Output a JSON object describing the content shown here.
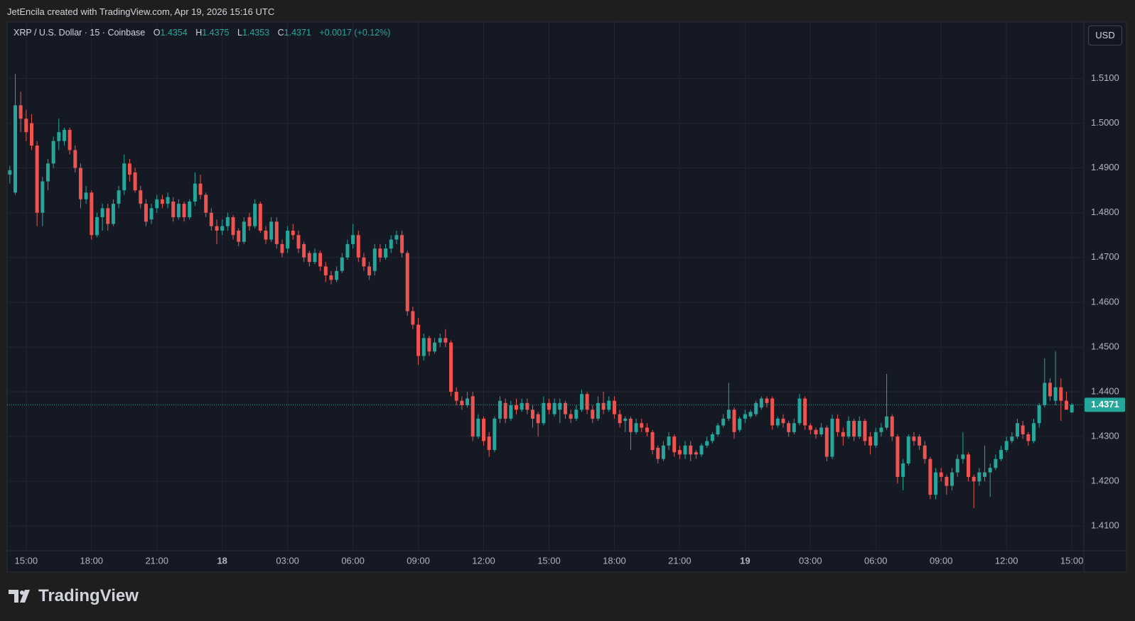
{
  "credit": "JetEncila created with TradingView.com, Apr 19, 2026 15:16 UTC",
  "brand": "TradingView",
  "chart_data": {
    "type": "candlestick",
    "title": "XRP / U.S. Dollar · 15 · Coinbase",
    "legend_keys": [
      "O",
      "H",
      "L",
      "C"
    ],
    "change": "+0.0017 (+0.12%)",
    "currency": "USD",
    "up_color": "#26a69a",
    "down_color": "#ef5350",
    "grid": true,
    "xlim": [
      -0.5,
      197.2
    ],
    "xticks": [
      {
        "value": 3,
        "label": "15:00"
      },
      {
        "value": 15,
        "label": "18:00"
      },
      {
        "value": 27,
        "label": "21:00"
      },
      {
        "value": 39,
        "label": "18"
      },
      {
        "value": 51,
        "label": "03:00"
      },
      {
        "value": 63,
        "label": "06:00"
      },
      {
        "value": 75,
        "label": "09:00"
      },
      {
        "value": 87,
        "label": "12:00"
      },
      {
        "value": 99,
        "label": "15:00"
      },
      {
        "value": 111,
        "label": "18:00"
      },
      {
        "value": 123,
        "label": "21:00"
      },
      {
        "value": 135,
        "label": "19"
      },
      {
        "value": 147,
        "label": "03:00"
      },
      {
        "value": 159,
        "label": "06:00"
      },
      {
        "value": 171,
        "label": "09:00"
      },
      {
        "value": 183,
        "label": "12:00"
      },
      {
        "value": 195,
        "label": "15:00"
      }
    ],
    "ylim": [
      1.4045,
      1.5226
    ],
    "yticks": [
      {
        "value": 1.41,
        "label": "1.4100"
      },
      {
        "value": 1.42,
        "label": "1.4200"
      },
      {
        "value": 1.43,
        "label": "1.4300"
      },
      {
        "value": 1.44,
        "label": "1.4400"
      },
      {
        "value": 1.45,
        "label": "1.4500"
      },
      {
        "value": 1.46,
        "label": "1.4600"
      },
      {
        "value": 1.47,
        "label": "1.4700"
      },
      {
        "value": 1.48,
        "label": "1.4800"
      },
      {
        "value": 1.49,
        "label": "1.4900"
      },
      {
        "value": 1.5,
        "label": "1.5000"
      },
      {
        "value": 1.51,
        "label": "1.5100"
      }
    ],
    "ohlc": [
      [
        1.4885,
        1.4905,
        1.4865,
        1.4895
      ],
      [
        1.4845,
        1.511,
        1.484,
        1.504
      ],
      [
        1.504,
        1.507,
        1.498,
        1.501
      ],
      [
        1.501,
        1.503,
        1.496,
        1.498
      ],
      [
        1.5,
        1.502,
        1.494,
        1.495
      ],
      [
        1.495,
        1.496,
        1.477,
        1.48
      ],
      [
        1.48,
        1.488,
        1.477,
        1.487
      ],
      [
        1.487,
        1.492,
        1.485,
        1.491
      ],
      [
        1.491,
        1.497,
        1.49,
        1.496
      ],
      [
        1.496,
        1.501,
        1.494,
        1.498
      ],
      [
        1.496,
        1.499,
        1.495,
        1.4985
      ],
      [
        1.4985,
        1.499,
        1.493,
        1.494
      ],
      [
        1.494,
        1.495,
        1.489,
        1.49
      ],
      [
        1.49,
        1.491,
        1.481,
        1.483
      ],
      [
        1.483,
        1.486,
        1.482,
        1.4845
      ],
      [
        1.4845,
        1.485,
        1.474,
        1.475
      ],
      [
        1.475,
        1.48,
        1.4745,
        1.479
      ],
      [
        1.479,
        1.482,
        1.476,
        1.481
      ],
      [
        1.481,
        1.482,
        1.476,
        1.4775
      ],
      [
        1.4775,
        1.483,
        1.477,
        1.482
      ],
      [
        1.482,
        1.486,
        1.481,
        1.485
      ],
      [
        1.485,
        1.493,
        1.484,
        1.491
      ],
      [
        1.491,
        1.492,
        1.487,
        1.4885
      ],
      [
        1.489,
        1.49,
        1.4845,
        1.485
      ],
      [
        1.485,
        1.486,
        1.481,
        1.482
      ],
      [
        1.482,
        1.483,
        1.477,
        1.478
      ],
      [
        1.4785,
        1.482,
        1.4775,
        1.481
      ],
      [
        1.481,
        1.484,
        1.48,
        1.483
      ],
      [
        1.483,
        1.484,
        1.481,
        1.482
      ],
      [
        1.482,
        1.4845,
        1.481,
        1.4835
      ],
      [
        1.4825,
        1.4835,
        1.478,
        1.479
      ],
      [
        1.479,
        1.483,
        1.4785,
        1.482
      ],
      [
        1.482,
        1.4825,
        1.478,
        1.479
      ],
      [
        1.479,
        1.483,
        1.4785,
        1.4825
      ],
      [
        1.4825,
        1.489,
        1.4815,
        1.4865
      ],
      [
        1.4865,
        1.4885,
        1.483,
        1.484
      ],
      [
        1.484,
        1.4845,
        1.479,
        1.48
      ],
      [
        1.48,
        1.481,
        1.476,
        1.477
      ],
      [
        1.477,
        1.4785,
        1.473,
        1.476
      ],
      [
        1.476,
        1.4785,
        1.475,
        1.477
      ],
      [
        1.477,
        1.48,
        1.476,
        1.479
      ],
      [
        1.479,
        1.4795,
        1.474,
        1.475
      ],
      [
        1.476,
        1.4765,
        1.4725,
        1.4735
      ],
      [
        1.4735,
        1.479,
        1.473,
        1.478
      ],
      [
        1.479,
        1.48,
        1.476,
        1.477
      ],
      [
        1.477,
        1.483,
        1.4765,
        1.482
      ],
      [
        1.482,
        1.4825,
        1.4755,
        1.476
      ],
      [
        1.476,
        1.477,
        1.473,
        1.474
      ],
      [
        1.474,
        1.479,
        1.4735,
        1.478
      ],
      [
        1.478,
        1.479,
        1.472,
        1.473
      ],
      [
        1.473,
        1.474,
        1.47,
        1.471
      ],
      [
        1.472,
        1.477,
        1.471,
        1.476
      ],
      [
        1.476,
        1.4775,
        1.474,
        1.475
      ],
      [
        1.475,
        1.476,
        1.471,
        1.472
      ],
      [
        1.473,
        1.4735,
        1.469,
        1.47
      ],
      [
        1.471,
        1.4715,
        1.468,
        1.469
      ],
      [
        1.469,
        1.472,
        1.4685,
        1.471
      ],
      [
        1.471,
        1.4715,
        1.467,
        1.468
      ],
      [
        1.468,
        1.469,
        1.4645,
        1.466
      ],
      [
        1.466,
        1.467,
        1.464,
        1.465
      ],
      [
        1.465,
        1.468,
        1.4645,
        1.467
      ],
      [
        1.467,
        1.471,
        1.4665,
        1.47
      ],
      [
        1.47,
        1.474,
        1.4695,
        1.473
      ],
      [
        1.473,
        1.4775,
        1.472,
        1.475
      ],
      [
        1.475,
        1.476,
        1.469,
        1.47
      ],
      [
        1.47,
        1.471,
        1.467,
        1.468
      ],
      [
        1.468,
        1.469,
        1.465,
        1.466
      ],
      [
        1.467,
        1.473,
        1.466,
        1.472
      ],
      [
        1.472,
        1.473,
        1.469,
        1.47
      ],
      [
        1.47,
        1.473,
        1.4695,
        1.472
      ],
      [
        1.472,
        1.475,
        1.471,
        1.474
      ],
      [
        1.474,
        1.476,
        1.473,
        1.475
      ],
      [
        1.475,
        1.476,
        1.47,
        1.471
      ],
      [
        1.471,
        1.4715,
        1.457,
        1.458
      ],
      [
        1.458,
        1.459,
        1.454,
        1.455
      ],
      [
        1.455,
        1.4565,
        1.446,
        1.448
      ],
      [
        1.448,
        1.453,
        1.447,
        1.452
      ],
      [
        1.452,
        1.4525,
        1.448,
        1.449
      ],
      [
        1.449,
        1.452,
        1.4485,
        1.451
      ],
      [
        1.451,
        1.453,
        1.45,
        1.452
      ],
      [
        1.452,
        1.454,
        1.45,
        1.451
      ],
      [
        1.451,
        1.4515,
        1.439,
        1.44
      ],
      [
        1.44,
        1.441,
        1.437,
        1.438
      ],
      [
        1.438,
        1.439,
        1.436,
        1.437
      ],
      [
        1.437,
        1.44,
        1.4365,
        1.4385
      ],
      [
        1.439,
        1.44,
        1.429,
        1.43
      ],
      [
        1.43,
        1.435,
        1.4295,
        1.434
      ],
      [
        1.434,
        1.4345,
        1.428,
        1.429
      ],
      [
        1.43,
        1.431,
        1.4255,
        1.427
      ],
      [
        1.427,
        1.4345,
        1.4265,
        1.434
      ],
      [
        1.434,
        1.439,
        1.433,
        1.438
      ],
      [
        1.4375,
        1.4385,
        1.433,
        1.434
      ],
      [
        1.434,
        1.438,
        1.4335,
        1.437
      ],
      [
        1.437,
        1.4385,
        1.435,
        1.436
      ],
      [
        1.436,
        1.4385,
        1.4355,
        1.4375
      ],
      [
        1.4375,
        1.4385,
        1.435,
        1.436
      ],
      [
        1.436,
        1.437,
        1.432,
        1.434
      ],
      [
        1.435,
        1.4355,
        1.43,
        1.433
      ],
      [
        1.433,
        1.439,
        1.4325,
        1.4375
      ],
      [
        1.4375,
        1.4385,
        1.435,
        1.436
      ],
      [
        1.435,
        1.4385,
        1.4345,
        1.4375
      ],
      [
        1.436,
        1.4385,
        1.433,
        1.4375
      ],
      [
        1.4375,
        1.438,
        1.434,
        1.435
      ],
      [
        1.435,
        1.436,
        1.433,
        1.434
      ],
      [
        1.434,
        1.437,
        1.4335,
        1.436
      ],
      [
        1.436,
        1.4405,
        1.4355,
        1.4395
      ],
      [
        1.4395,
        1.44,
        1.435,
        1.436
      ],
      [
        1.436,
        1.437,
        1.433,
        1.434
      ],
      [
        1.434,
        1.439,
        1.4335,
        1.4375
      ],
      [
        1.4375,
        1.44,
        1.435,
        1.436
      ],
      [
        1.436,
        1.439,
        1.4355,
        1.438
      ],
      [
        1.438,
        1.439,
        1.434,
        1.435
      ],
      [
        1.435,
        1.436,
        1.432,
        1.433
      ],
      [
        1.4335,
        1.4345,
        1.431,
        1.434
      ],
      [
        1.434,
        1.4345,
        1.427,
        1.431
      ],
      [
        1.431,
        1.434,
        1.4305,
        1.433
      ],
      [
        1.433,
        1.434,
        1.431,
        1.432
      ],
      [
        1.432,
        1.433,
        1.43,
        1.431
      ],
      [
        1.431,
        1.4315,
        1.426,
        1.427
      ],
      [
        1.4275,
        1.428,
        1.424,
        1.425
      ],
      [
        1.425,
        1.429,
        1.4245,
        1.428
      ],
      [
        1.428,
        1.431,
        1.427,
        1.43
      ],
      [
        1.43,
        1.4305,
        1.4255,
        1.4265
      ],
      [
        1.427,
        1.428,
        1.425,
        1.426
      ],
      [
        1.426,
        1.429,
        1.425,
        1.428
      ],
      [
        1.428,
        1.429,
        1.4245,
        1.426
      ],
      [
        1.4265,
        1.427,
        1.425,
        1.426
      ],
      [
        1.426,
        1.4285,
        1.4255,
        1.428
      ],
      [
        1.428,
        1.43,
        1.4275,
        1.429
      ],
      [
        1.429,
        1.431,
        1.4285,
        1.4305
      ],
      [
        1.4305,
        1.433,
        1.43,
        1.4325
      ],
      [
        1.4325,
        1.435,
        1.432,
        1.434
      ],
      [
        1.434,
        1.442,
        1.4335,
        1.436
      ],
      [
        1.436,
        1.4365,
        1.4295,
        1.431
      ],
      [
        1.4315,
        1.4345,
        1.431,
        1.434
      ],
      [
        1.434,
        1.436,
        1.433,
        1.435
      ],
      [
        1.4345,
        1.436,
        1.434,
        1.4355
      ],
      [
        1.435,
        1.438,
        1.4345,
        1.4375
      ],
      [
        1.4365,
        1.439,
        1.436,
        1.4385
      ],
      [
        1.4385,
        1.439,
        1.4365,
        1.4375
      ],
      [
        1.4385,
        1.439,
        1.4315,
        1.4325
      ],
      [
        1.4325,
        1.4345,
        1.432,
        1.434
      ],
      [
        1.434,
        1.435,
        1.432,
        1.433
      ],
      [
        1.433,
        1.4335,
        1.43,
        1.431
      ],
      [
        1.431,
        1.434,
        1.4305,
        1.433
      ],
      [
        1.433,
        1.4395,
        1.4325,
        1.4385
      ],
      [
        1.4385,
        1.439,
        1.4315,
        1.4325
      ],
      [
        1.4325,
        1.433,
        1.4305,
        1.4315
      ],
      [
        1.4315,
        1.432,
        1.4295,
        1.4305
      ],
      [
        1.4305,
        1.433,
        1.43,
        1.432
      ],
      [
        1.432,
        1.4325,
        1.4245,
        1.4255
      ],
      [
        1.4255,
        1.435,
        1.425,
        1.434
      ],
      [
        1.434,
        1.435,
        1.43,
        1.431
      ],
      [
        1.431,
        1.432,
        1.428,
        1.43
      ],
      [
        1.43,
        1.4345,
        1.4295,
        1.4335
      ],
      [
        1.4335,
        1.434,
        1.429,
        1.43
      ],
      [
        1.43,
        1.4345,
        1.4295,
        1.4335
      ],
      [
        1.4335,
        1.434,
        1.428,
        1.429
      ],
      [
        1.43,
        1.431,
        1.426,
        1.428
      ],
      [
        1.428,
        1.432,
        1.4275,
        1.431
      ],
      [
        1.431,
        1.433,
        1.43,
        1.432
      ],
      [
        1.432,
        1.444,
        1.4315,
        1.4345
      ],
      [
        1.4345,
        1.435,
        1.429,
        1.43
      ],
      [
        1.43,
        1.4305,
        1.4195,
        1.421
      ],
      [
        1.421,
        1.425,
        1.418,
        1.424
      ],
      [
        1.424,
        1.4305,
        1.4235,
        1.43
      ],
      [
        1.43,
        1.431,
        1.428,
        1.429
      ],
      [
        1.43,
        1.4305,
        1.427,
        1.428
      ],
      [
        1.428,
        1.429,
        1.424,
        1.425
      ],
      [
        1.425,
        1.4255,
        1.416,
        1.417
      ],
      [
        1.417,
        1.423,
        1.416,
        1.422
      ],
      [
        1.422,
        1.423,
        1.42,
        1.421
      ],
      [
        1.421,
        1.4215,
        1.417,
        1.419
      ],
      [
        1.419,
        1.423,
        1.418,
        1.422
      ],
      [
        1.422,
        1.426,
        1.421,
        1.425
      ],
      [
        1.425,
        1.431,
        1.424,
        1.426
      ],
      [
        1.426,
        1.4265,
        1.42,
        1.421
      ],
      [
        1.421,
        1.4215,
        1.414,
        1.42
      ],
      [
        1.42,
        1.423,
        1.419,
        1.422
      ],
      [
        1.421,
        1.428,
        1.42,
        1.422
      ],
      [
        1.422,
        1.424,
        1.4165,
        1.423
      ],
      [
        1.423,
        1.426,
        1.4225,
        1.425
      ],
      [
        1.425,
        1.428,
        1.4245,
        1.427
      ],
      [
        1.427,
        1.43,
        1.4265,
        1.429
      ],
      [
        1.429,
        1.431,
        1.4285,
        1.43
      ],
      [
        1.43,
        1.434,
        1.4295,
        1.433
      ],
      [
        1.4325,
        1.4335,
        1.4295,
        1.4305
      ],
      [
        1.4305,
        1.431,
        1.428,
        1.429
      ],
      [
        1.429,
        1.434,
        1.4285,
        1.433
      ],
      [
        1.433,
        1.4375,
        1.432,
        1.437
      ],
      [
        1.437,
        1.4475,
        1.4365,
        1.442
      ],
      [
        1.442,
        1.443,
        1.438,
        1.439
      ],
      [
        1.438,
        1.449,
        1.437,
        1.441
      ],
      [
        1.441,
        1.443,
        1.4335,
        1.438
      ],
      [
        1.438,
        1.44,
        1.436,
        1.436
      ],
      [
        1.4354,
        1.4375,
        1.4353,
        1.4371
      ]
    ]
  }
}
